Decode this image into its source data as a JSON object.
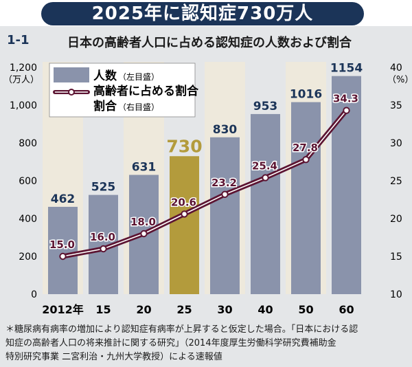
{
  "header": {
    "title": "2025年に認知症730万人",
    "figure_number": "1-1",
    "subtitle": "日本の高齢者人口に占める認知症の人数および割合"
  },
  "chart_data": {
    "type": "bar",
    "categories": [
      "2012年",
      "15",
      "20",
      "25",
      "30",
      "40",
      "50",
      "60"
    ],
    "series": [
      {
        "name": "人数",
        "legend_note": "（左目盛）",
        "axis": "left",
        "type": "bar",
        "values": [
          462,
          525,
          631,
          730,
          830,
          953,
          1016,
          1154
        ],
        "labels": [
          "462",
          "525",
          "631",
          "730",
          "830",
          "953",
          "1016",
          "1154"
        ],
        "color": "#8a93ab",
        "highlight_color": "#b39b3c",
        "highlight_index": 3
      },
      {
        "name": "高齢者に占める割合",
        "legend_note": "（右目盛）",
        "axis": "right",
        "type": "line",
        "values": [
          15.0,
          16.0,
          18.0,
          20.6,
          23.2,
          25.4,
          27.8,
          34.3
        ],
        "labels": [
          "15.0",
          "16.0",
          "18.0",
          "20.6",
          "23.2",
          "25.4",
          "27.8",
          "34.3"
        ],
        "color": "#5c1432"
      }
    ],
    "y_left": {
      "range": [
        0,
        1200
      ],
      "ticks": [
        "0",
        "200",
        "400",
        "600",
        "800",
        "1,000",
        "1,200"
      ],
      "unit": "（万人）"
    },
    "y_right": {
      "range": [
        10,
        40
      ],
      "ticks": [
        "10",
        "15",
        "20",
        "25",
        "30",
        "35",
        "40"
      ],
      "unit": "（%）"
    },
    "legend": "top-left",
    "grid": false
  },
  "footnote": [
    "＊糖尿病有病率の増加により認知症有病率が上昇すると仮定した場合。「日本における認",
    "知症の高齢者人口の将来推計に関する研究」（2014年度厚生労働科学研究費補助金",
    "特別研究事業 二宮利治・九州大学教授）による速報値"
  ]
}
